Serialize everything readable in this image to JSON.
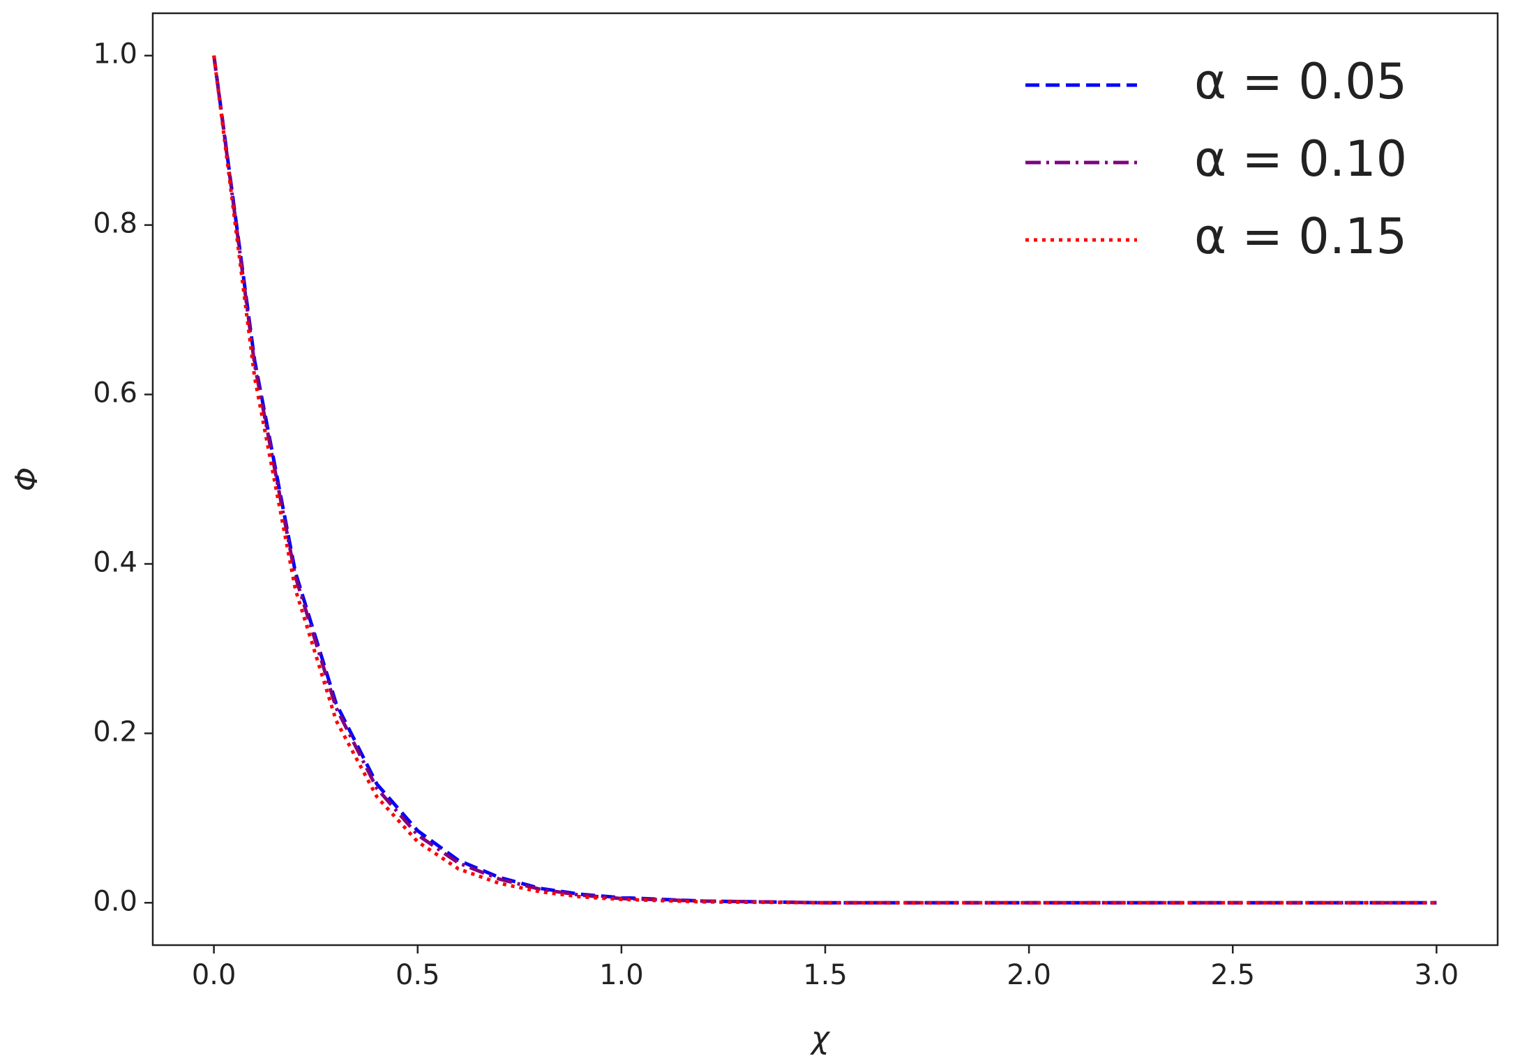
{
  "chart_data": {
    "type": "line",
    "x_label": "χ",
    "y_label": "Φ",
    "x": [
      0,
      0.1,
      0.2,
      0.3,
      0.4,
      0.5,
      0.6,
      0.7,
      0.8,
      0.9,
      1.0,
      1.2,
      1.5,
      2.0,
      2.5,
      3.0
    ],
    "series": [
      {
        "name": "α = 0.05",
        "color": "#0000ff",
        "linestyle": "dashed",
        "values": [
          1,
          0.64,
          0.39,
          0.235,
          0.14,
          0.085,
          0.05,
          0.03,
          0.017,
          0.01,
          0.006,
          0.002,
          0,
          0,
          0,
          0
        ]
      },
      {
        "name": "α = 0.10",
        "color": "#800080",
        "linestyle": "dashdot",
        "values": [
          1,
          0.635,
          0.385,
          0.23,
          0.135,
          0.08,
          0.047,
          0.028,
          0.016,
          0.009,
          0.005,
          0.002,
          0,
          0,
          0,
          0
        ]
      },
      {
        "name": "α = 0.15",
        "color": "#ff0000",
        "linestyle": "dotted",
        "values": [
          1,
          0.62,
          0.37,
          0.215,
          0.125,
          0.072,
          0.04,
          0.023,
          0.013,
          0.007,
          0.004,
          0.001,
          0,
          0,
          0,
          0
        ]
      }
    ],
    "xlim": [
      -0.15,
      3.15
    ],
    "xticks": [
      {
        "value": 0,
        "label": "0.0"
      },
      {
        "value": 0.5,
        "label": "0.5"
      },
      {
        "value": 1,
        "label": "1.0"
      },
      {
        "value": 1.5,
        "label": "1.5"
      },
      {
        "value": 2,
        "label": "2.0"
      },
      {
        "value": 2.5,
        "label": "2.5"
      },
      {
        "value": 3,
        "label": "3.0"
      }
    ],
    "ylim": [
      -0.05,
      1.05
    ],
    "yticks": [
      {
        "value": 0,
        "label": "0.0"
      },
      {
        "value": 0.2,
        "label": "0.2"
      },
      {
        "value": 0.4,
        "label": "0.4"
      },
      {
        "value": 0.6,
        "label": "0.6"
      },
      {
        "value": 0.8,
        "label": "0.8"
      },
      {
        "value": 1,
        "label": "1.0"
      }
    ],
    "legend": "upper right",
    "grid": false
  }
}
